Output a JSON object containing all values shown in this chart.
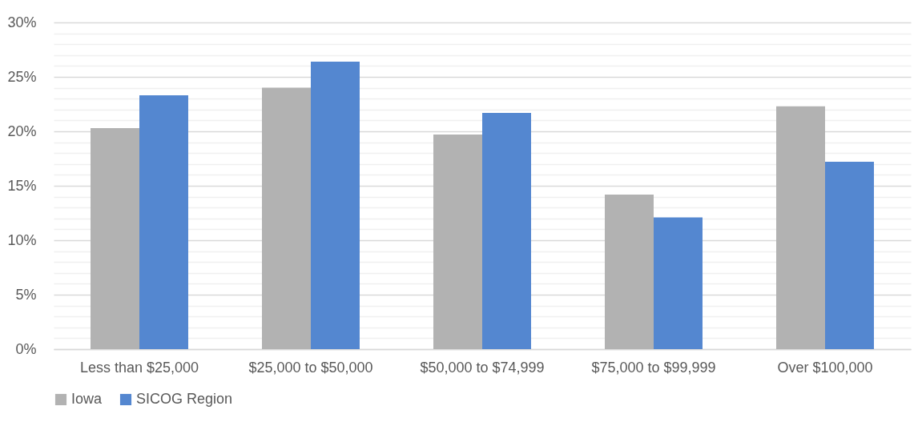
{
  "chart_data": {
    "type": "bar",
    "categories": [
      "Less than $25,000",
      "$25,000 to $50,000",
      "$50,000 to $74,999",
      "$75,000 to $99,999",
      "Over $100,000"
    ],
    "series": [
      {
        "name": "Iowa",
        "color": "#b2b2b2",
        "values": [
          20.3,
          24.0,
          19.7,
          14.2,
          22.3
        ]
      },
      {
        "name": "SICOG Region",
        "color": "#5487d0",
        "values": [
          23.3,
          26.4,
          21.7,
          12.1,
          17.2
        ]
      }
    ],
    "ylim": [
      0,
      30
    ],
    "yticks": [
      {
        "value": 0,
        "label": "0%"
      },
      {
        "value": 1,
        "label": null
      },
      {
        "value": 2,
        "label": null
      },
      {
        "value": 3,
        "label": null
      },
      {
        "value": 4,
        "label": null
      },
      {
        "value": 5,
        "label": "5%"
      },
      {
        "value": 6,
        "label": null
      },
      {
        "value": 7,
        "label": null
      },
      {
        "value": 8,
        "label": null
      },
      {
        "value": 9,
        "label": null
      },
      {
        "value": 10,
        "label": "10%"
      },
      {
        "value": 11,
        "label": null
      },
      {
        "value": 12,
        "label": null
      },
      {
        "value": 13,
        "label": null
      },
      {
        "value": 14,
        "label": null
      },
      {
        "value": 15,
        "label": "15%"
      },
      {
        "value": 16,
        "label": null
      },
      {
        "value": 17,
        "label": null
      },
      {
        "value": 18,
        "label": null
      },
      {
        "value": 19,
        "label": null
      },
      {
        "value": 20,
        "label": "20%"
      },
      {
        "value": 21,
        "label": null
      },
      {
        "value": 22,
        "label": null
      },
      {
        "value": 23,
        "label": null
      },
      {
        "value": 24,
        "label": null
      },
      {
        "value": 25,
        "label": "25%"
      },
      {
        "value": 26,
        "label": null
      },
      {
        "value": 27,
        "label": null
      },
      {
        "value": 28,
        "label": null
      },
      {
        "value": 29,
        "label": null
      },
      {
        "value": 30,
        "label": "30%"
      }
    ],
    "grid": true,
    "legend": "bottom"
  }
}
